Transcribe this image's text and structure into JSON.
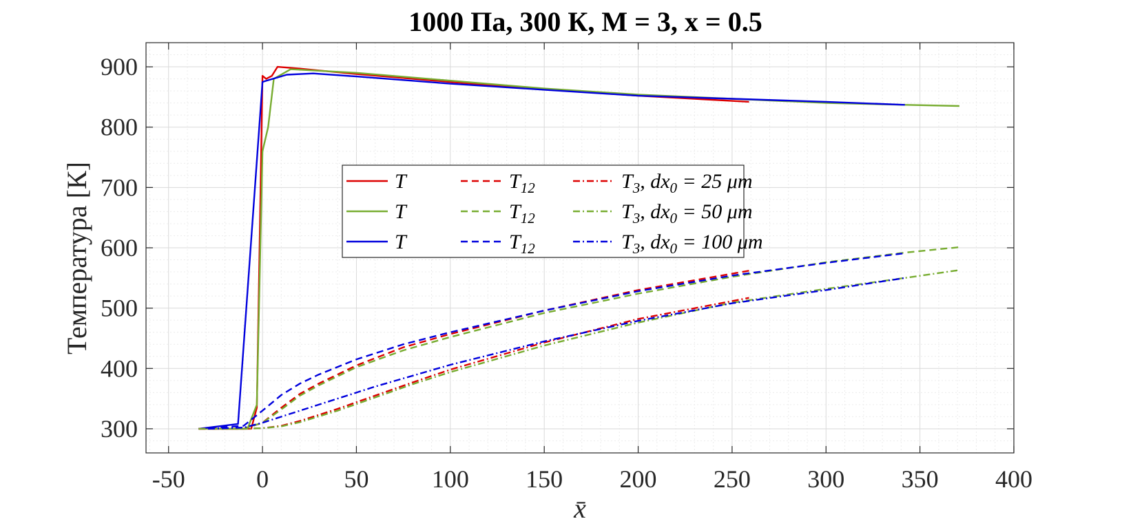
{
  "chart_data": {
    "type": "line",
    "title": "1000 Па, 300 К, M = 3, x = 0.5",
    "xlabel": "x̄",
    "ylabel": "Температура [К]",
    "xlim": [
      -62,
      400
    ],
    "ylim": [
      260,
      940
    ],
    "xticks": [
      -50,
      0,
      50,
      100,
      150,
      200,
      250,
      300,
      350,
      400
    ],
    "yticks": [
      300,
      400,
      500,
      600,
      700,
      800,
      900
    ],
    "xtick_labels": [
      "-50",
      "0",
      "50",
      "100",
      "150",
      "200",
      "250",
      "300",
      "350",
      "400"
    ],
    "ytick_labels": [
      "300",
      "400",
      "500",
      "600",
      "700",
      "800",
      "900"
    ],
    "grid": true,
    "minor_grid": true,
    "legend_position": "center-left",
    "colors": {
      "red": "#dd0000",
      "green": "#77ac30",
      "blue": "#0000dd"
    },
    "legend": [
      [
        {
          "text": "T",
          "sub": ""
        },
        {
          "text": "T",
          "sub": "12"
        },
        {
          "text": "T",
          "sub": "3",
          "suffix": ", dx",
          "suffix_sub": "0",
          "tail": " = 25 μm"
        }
      ],
      [
        {
          "text": "T",
          "sub": ""
        },
        {
          "text": "T",
          "sub": "12"
        },
        {
          "text": "T",
          "sub": "3",
          "suffix": ", dx",
          "suffix_sub": "0",
          "tail": " = 50 μm"
        }
      ],
      [
        {
          "text": "T",
          "sub": ""
        },
        {
          "text": "T",
          "sub": "12"
        },
        {
          "text": "T",
          "sub": "3",
          "suffix": ", dx",
          "suffix_sub": "0",
          "tail": " = 100 μm"
        }
      ]
    ],
    "series": [
      {
        "group": "dx0 = 25 μm",
        "var": "T",
        "color": "red",
        "dash": "solid",
        "x": [
          -34,
          -6,
          -3,
          0,
          2,
          5,
          8,
          20,
          50,
          100,
          150,
          200,
          259
        ],
        "y": [
          300,
          300,
          335,
          885,
          880,
          885,
          900,
          897,
          888,
          875,
          863,
          852,
          842
        ]
      },
      {
        "group": "dx0 = 50 μm",
        "var": "T",
        "color": "green",
        "dash": "solid",
        "x": [
          -34,
          -8,
          -3,
          0,
          3,
          6,
          15,
          50,
          100,
          150,
          200,
          250,
          300,
          342,
          371
        ],
        "y": [
          300,
          300,
          340,
          760,
          800,
          880,
          896,
          890,
          877,
          864,
          854,
          847,
          840,
          837,
          835
        ]
      },
      {
        "group": "dx0 = 100 μm",
        "var": "T",
        "color": "blue",
        "dash": "solid",
        "x": [
          -34,
          -13,
          0,
          13,
          27,
          50,
          100,
          150,
          200,
          250,
          300,
          342
        ],
        "y": [
          300,
          308,
          875,
          887,
          889,
          884,
          872,
          862,
          852,
          847,
          842,
          837
        ]
      },
      {
        "group": "dx0 = 25 μm",
        "var": "T12",
        "color": "red",
        "dash": "dashed",
        "x": [
          -34,
          -10,
          0,
          10,
          20,
          30,
          50,
          75,
          100,
          150,
          200,
          259
        ],
        "y": [
          300,
          300,
          310,
          335,
          358,
          375,
          405,
          435,
          457,
          496,
          530,
          562
        ]
      },
      {
        "group": "dx0 = 50 μm",
        "var": "T12",
        "color": "green",
        "dash": "dashed",
        "x": [
          -34,
          -10,
          0,
          10,
          20,
          30,
          50,
          75,
          100,
          150,
          200,
          250,
          300,
          342,
          371
        ],
        "y": [
          300,
          300,
          310,
          332,
          355,
          372,
          402,
          430,
          452,
          492,
          524,
          552,
          576,
          592,
          601
        ]
      },
      {
        "group": "dx0 = 100 μm",
        "var": "T12",
        "color": "blue",
        "dash": "dashed",
        "x": [
          -34,
          -10,
          0,
          10,
          20,
          30,
          50,
          75,
          100,
          150,
          200,
          250,
          300,
          342
        ],
        "y": [
          300,
          305,
          330,
          356,
          375,
          390,
          415,
          440,
          460,
          496,
          528,
          554,
          575,
          591
        ]
      },
      {
        "group": "dx0 = 25 μm",
        "var": "T3",
        "color": "red",
        "dash": "dashdot",
        "x": [
          -34,
          -10,
          0,
          10,
          20,
          40,
          60,
          80,
          100,
          150,
          200,
          259
        ],
        "y": [
          300,
          300,
          301,
          305,
          313,
          333,
          355,
          377,
          398,
          443,
          482,
          517
        ]
      },
      {
        "group": "dx0 = 50 μm",
        "var": "T3",
        "color": "green",
        "dash": "dashdot",
        "x": [
          -34,
          -10,
          0,
          10,
          20,
          40,
          60,
          80,
          100,
          150,
          200,
          250,
          300,
          342,
          371
        ],
        "y": [
          300,
          300,
          301,
          304,
          311,
          330,
          352,
          374,
          394,
          438,
          476,
          509,
          532,
          550,
          563
        ]
      },
      {
        "group": "dx0 = 100 μm",
        "var": "T3",
        "color": "blue",
        "dash": "dashdot",
        "x": [
          -29,
          -10,
          0,
          20,
          40,
          60,
          80,
          100,
          150,
          200,
          250,
          300,
          342
        ],
        "y": [
          300,
          302,
          310,
          330,
          350,
          370,
          388,
          406,
          445,
          479,
          508,
          530,
          550
        ]
      }
    ]
  }
}
